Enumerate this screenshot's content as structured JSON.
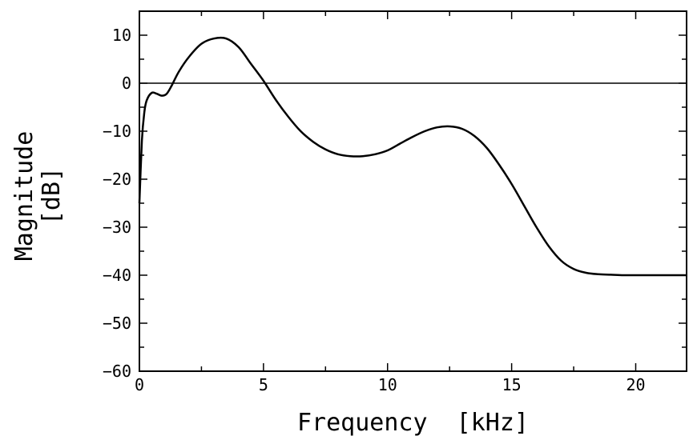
{
  "chart_data": {
    "type": "line",
    "title": "",
    "xlabel": "Frequency  [kHz]",
    "ylabel": [
      "Magnitude",
      "[dB]"
    ],
    "xlim": [
      0,
      22.05
    ],
    "ylim": [
      -60,
      15
    ],
    "x_ticks": [
      0,
      5,
      10,
      15,
      20
    ],
    "y_ticks": [
      10,
      0,
      -10,
      -20,
      -30,
      -40,
      -50,
      -60
    ],
    "x_tick_labels": [
      "0",
      "5",
      "10",
      "15",
      "20"
    ],
    "y_tick_labels": [
      "10",
      "0",
      "−10",
      "−20",
      "−30",
      "−40",
      "−50",
      "−60"
    ],
    "reference_line_y": 0,
    "grid": false,
    "legend": "none",
    "series": [
      {
        "color": "#000000",
        "x": [
          0.0,
          0.1,
          0.2,
          0.3,
          0.5,
          0.7,
          0.9,
          1.1,
          1.3,
          1.6,
          2.0,
          2.5,
          3.0,
          3.5,
          4.0,
          4.5,
          5.0,
          5.5,
          6.0,
          6.5,
          7.0,
          7.5,
          8.0,
          8.5,
          9.0,
          9.5,
          10.0,
          10.5,
          11.0,
          11.5,
          12.0,
          12.5,
          13.0,
          13.5,
          14.0,
          14.5,
          15.0,
          15.5,
          16.0,
          16.5,
          17.0,
          17.5,
          18.0,
          18.5,
          19.0,
          19.5,
          20.0,
          21.0,
          22.05
        ],
        "y": [
          -25,
          -12,
          -6,
          -3.5,
          -2,
          -2.2,
          -2.6,
          -2.2,
          -0.5,
          2.5,
          5.5,
          8.2,
          9.3,
          9.3,
          7.5,
          4,
          0.5,
          -3.5,
          -7,
          -10,
          -12.2,
          -13.8,
          -14.8,
          -15.2,
          -15.2,
          -14.8,
          -14,
          -12.6,
          -11.2,
          -10,
          -9.2,
          -9,
          -9.5,
          -11,
          -13.5,
          -17,
          -21,
          -25.5,
          -30,
          -34,
          -37,
          -38.7,
          -39.5,
          -39.8,
          -39.9,
          -40,
          -40,
          -40,
          -40
        ]
      }
    ]
  }
}
